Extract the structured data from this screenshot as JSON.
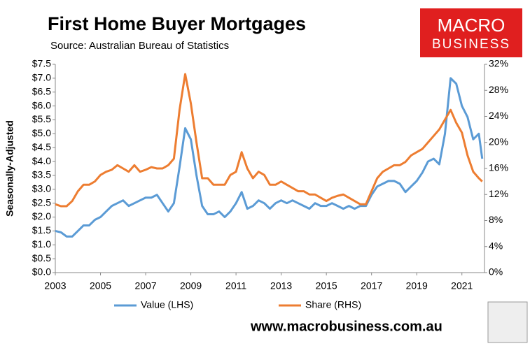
{
  "chart_data": {
    "type": "line",
    "title": "First Home Buyer Mortgages",
    "subtitle": "Source: Australian Bureau of Statistics",
    "y_label": "Seasonally-Adjusted",
    "x": [
      2003,
      2003.25,
      2003.5,
      2003.75,
      2004,
      2004.25,
      2004.5,
      2004.75,
      2005,
      2005.25,
      2005.5,
      2005.75,
      2006,
      2006.25,
      2006.5,
      2006.75,
      2007,
      2007.25,
      2007.5,
      2007.75,
      2008,
      2008.25,
      2008.5,
      2008.75,
      2009,
      2009.25,
      2009.5,
      2009.75,
      2010,
      2010.25,
      2010.5,
      2010.75,
      2011,
      2011.25,
      2011.5,
      2011.75,
      2012,
      2012.25,
      2012.5,
      2012.75,
      2013,
      2013.25,
      2013.5,
      2013.75,
      2014,
      2014.25,
      2014.5,
      2014.75,
      2015,
      2015.25,
      2015.5,
      2015.75,
      2016,
      2016.25,
      2016.5,
      2016.75,
      2017,
      2017.25,
      2017.5,
      2017.75,
      2018,
      2018.25,
      2018.5,
      2018.75,
      2019,
      2019.25,
      2019.5,
      2019.75,
      2020,
      2020.25,
      2020.5,
      2020.75,
      2021,
      2021.25,
      2021.5,
      2021.75,
      2021.9
    ],
    "series": [
      {
        "name": "Value (LHS)",
        "color": "#5b9bd5",
        "axis": "y",
        "values": [
          1.5,
          1.45,
          1.3,
          1.3,
          1.5,
          1.7,
          1.7,
          1.9,
          2.0,
          2.2,
          2.4,
          2.5,
          2.6,
          2.4,
          2.5,
          2.6,
          2.7,
          2.7,
          2.8,
          2.5,
          2.2,
          2.5,
          3.8,
          5.2,
          4.8,
          3.5,
          2.4,
          2.1,
          2.1,
          2.2,
          2.0,
          2.2,
          2.5,
          2.9,
          2.3,
          2.4,
          2.6,
          2.5,
          2.3,
          2.5,
          2.6,
          2.5,
          2.6,
          2.5,
          2.4,
          2.3,
          2.5,
          2.4,
          2.4,
          2.5,
          2.4,
          2.3,
          2.4,
          2.3,
          2.4,
          2.4,
          2.8,
          3.1,
          3.2,
          3.3,
          3.3,
          3.2,
          2.9,
          3.1,
          3.3,
          3.6,
          4.0,
          4.1,
          3.9,
          5.0,
          7.0,
          6.8,
          6.0,
          5.6,
          4.8,
          5.0,
          4.1
        ]
      },
      {
        "name": "Share (RHS)",
        "color": "#ed7d31",
        "axis": "y2",
        "values": [
          10.5,
          10.2,
          10.2,
          11.0,
          12.5,
          13.5,
          13.5,
          14.0,
          15.0,
          15.5,
          15.8,
          16.5,
          16.0,
          15.5,
          16.5,
          15.5,
          15.8,
          16.2,
          16.0,
          16.0,
          16.5,
          17.5,
          25.0,
          30.5,
          26.0,
          20.0,
          14.5,
          14.5,
          13.5,
          13.5,
          13.5,
          15.0,
          15.5,
          18.5,
          16.0,
          14.5,
          15.5,
          15.0,
          13.5,
          13.5,
          14.0,
          13.5,
          13.0,
          12.5,
          12.5,
          12.0,
          12.0,
          11.5,
          11.0,
          11.5,
          11.8,
          12.0,
          11.5,
          11.0,
          10.5,
          10.5,
          12.5,
          14.5,
          15.5,
          16.0,
          16.5,
          16.5,
          17.0,
          18.0,
          18.5,
          19.0,
          20.0,
          21.0,
          22.0,
          23.5,
          25.0,
          23.0,
          21.5,
          18.0,
          15.5,
          14.5,
          14.0
        ]
      }
    ],
    "xlim": [
      2003,
      2022
    ],
    "xticks": [
      2003,
      2005,
      2007,
      2009,
      2011,
      2013,
      2015,
      2017,
      2019,
      2021
    ],
    "ylim": [
      0,
      7.5
    ],
    "yticks": [
      {
        "value": 0,
        "label": "$0.0"
      },
      {
        "value": 0.5,
        "label": "$0.5"
      },
      {
        "value": 1,
        "label": "$1.0"
      },
      {
        "value": 1.5,
        "label": "$1.5"
      },
      {
        "value": 2,
        "label": "$2.0"
      },
      {
        "value": 2.5,
        "label": "$2.5"
      },
      {
        "value": 3,
        "label": "$3.0"
      },
      {
        "value": 3.5,
        "label": "$3.5"
      },
      {
        "value": 4,
        "label": "$4.0"
      },
      {
        "value": 4.5,
        "label": "$4.5"
      },
      {
        "value": 5,
        "label": "$5.0"
      },
      {
        "value": 5.5,
        "label": "$5.5"
      },
      {
        "value": 6,
        "label": "$6.0"
      },
      {
        "value": 6.5,
        "label": "$6.5"
      },
      {
        "value": 7,
        "label": "$7.0"
      },
      {
        "value": 7.5,
        "label": "$7.5"
      }
    ],
    "y2lim": [
      0,
      32
    ],
    "y2ticks": [
      {
        "value": 0,
        "label": "0%"
      },
      {
        "value": 4,
        "label": "4%"
      },
      {
        "value": 8,
        "label": "8%"
      },
      {
        "value": 12,
        "label": "12%"
      },
      {
        "value": 16,
        "label": "16%"
      },
      {
        "value": 20,
        "label": "20%"
      },
      {
        "value": 24,
        "label": "24%"
      },
      {
        "value": 28,
        "label": "28%"
      },
      {
        "value": 32,
        "label": "32%"
      }
    ],
    "grid": false,
    "legend": "bottom"
  },
  "branding": {
    "logo_top": "MACRO",
    "logo_bottom": "BUSINESS",
    "website": "www.macrobusiness.com.au"
  }
}
